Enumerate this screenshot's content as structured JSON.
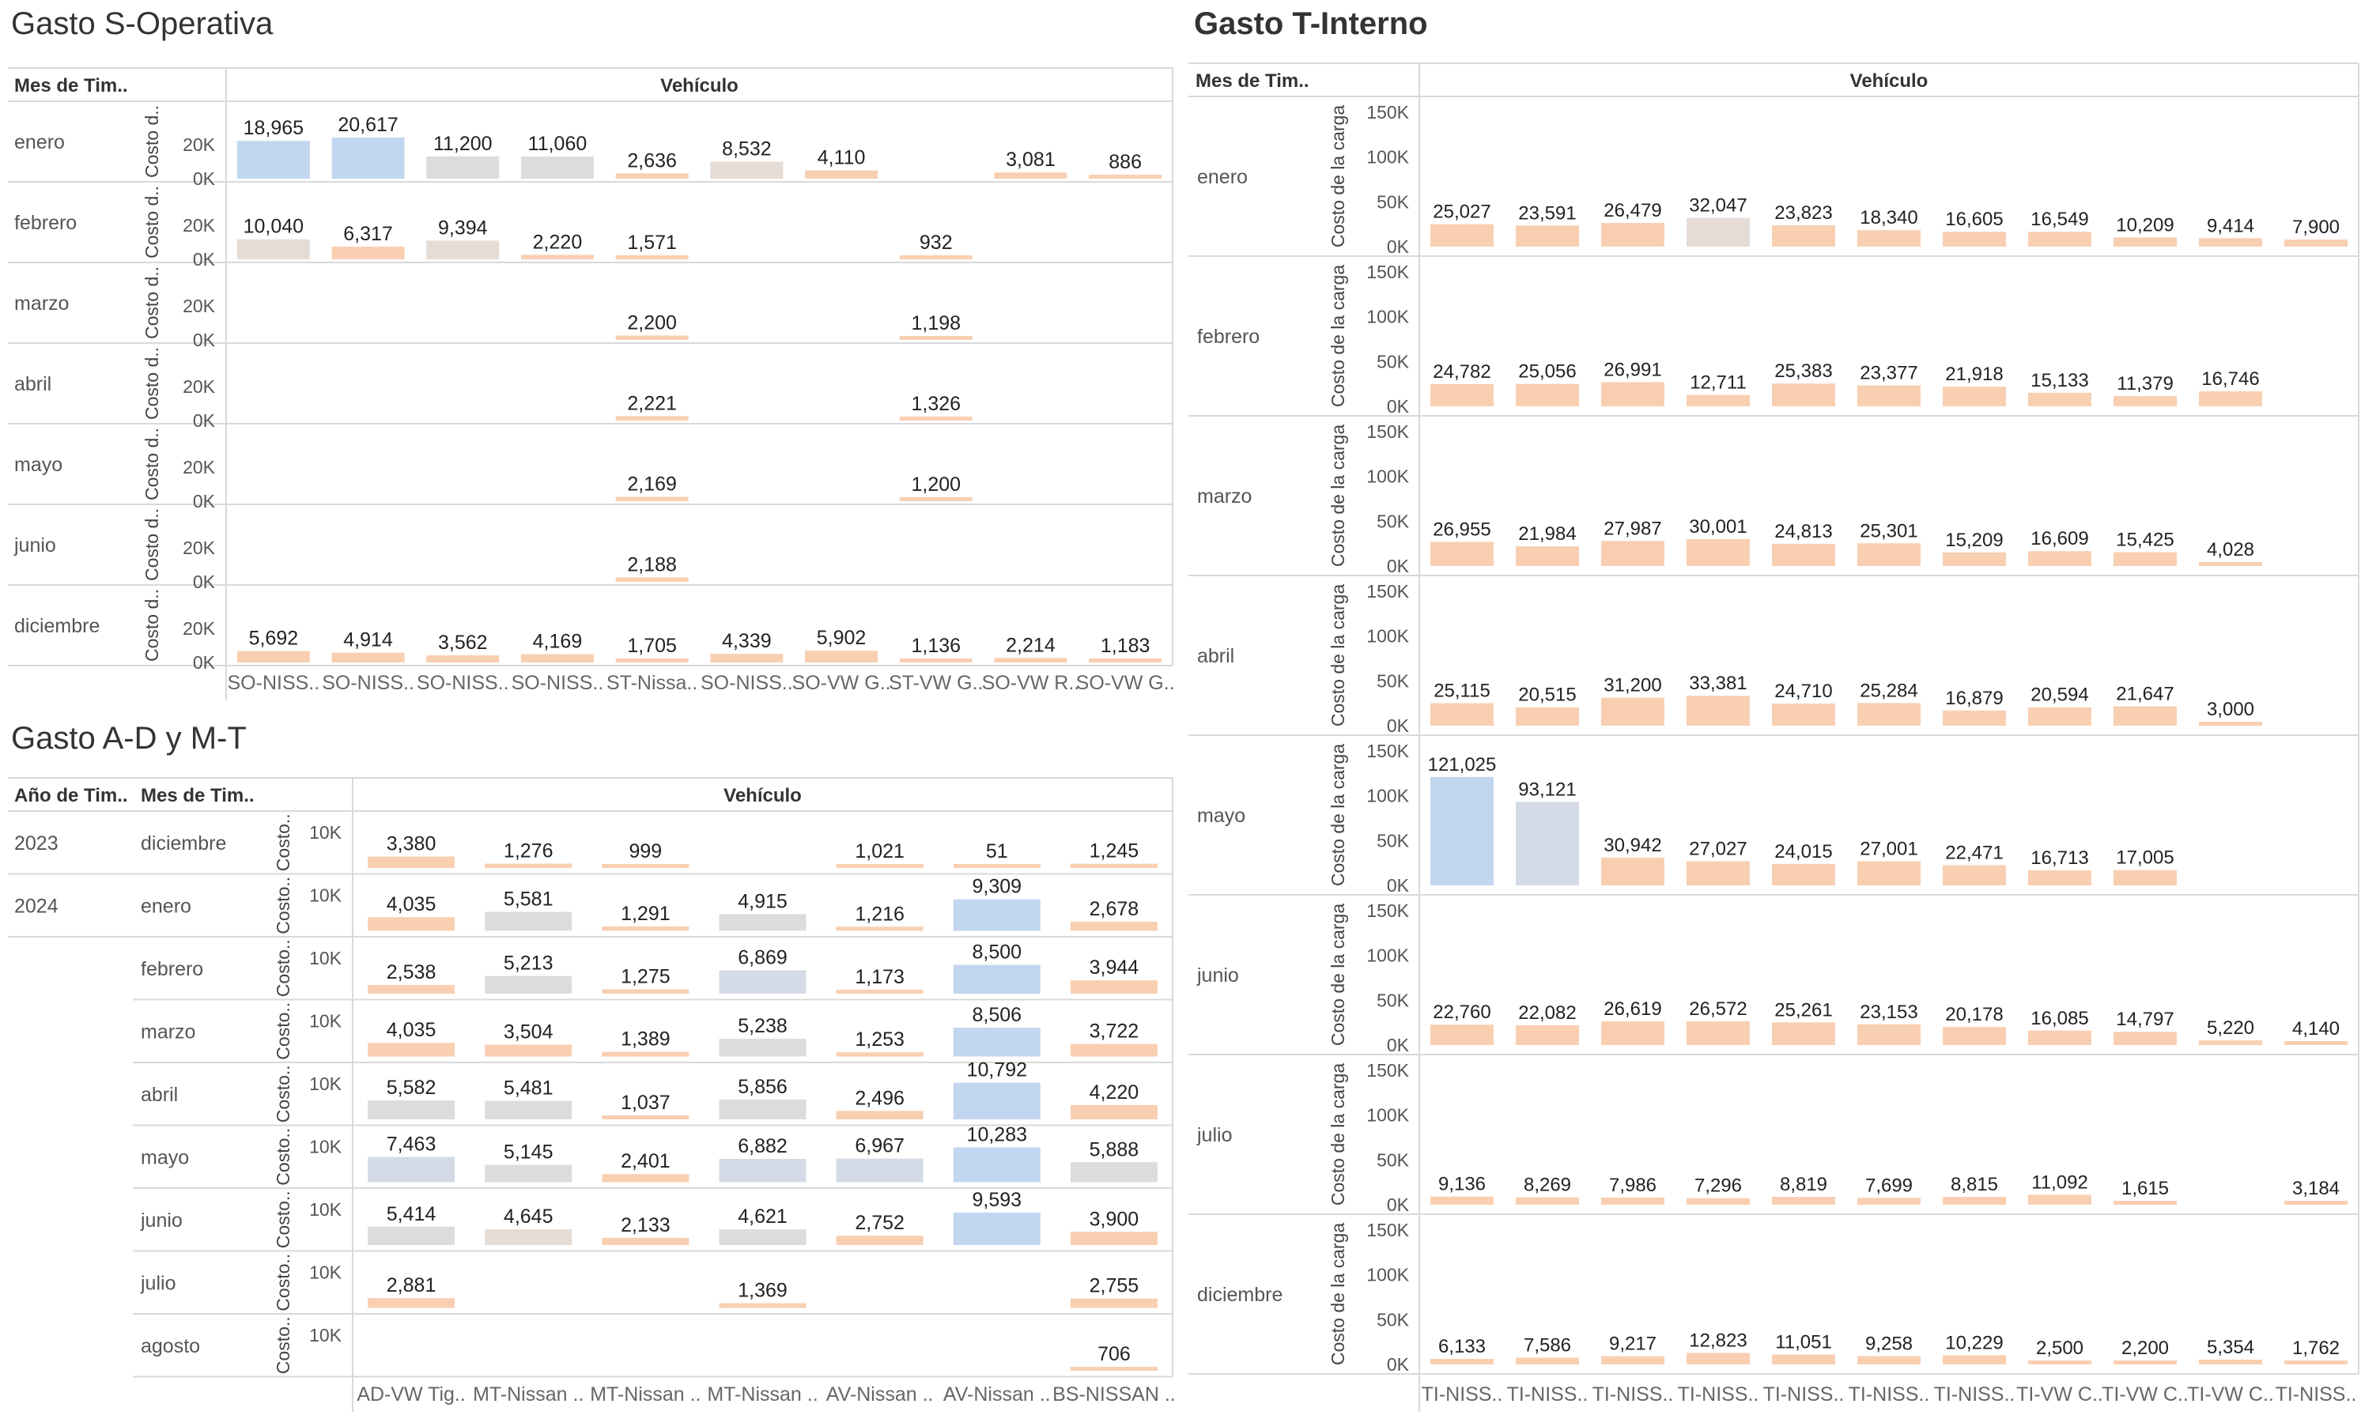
{
  "colors": {
    "blue": "#c3d6f0",
    "blue_gray": "#d4dbe6",
    "gray": "#dcdcdc",
    "warm_gray": "#e6dcd6",
    "peach": "#f9cfb1",
    "peach_light": "#fbd9c0"
  },
  "chart_data": [
    {
      "type": "bar",
      "title": "Gasto S-Operativa",
      "row_header": "Mes de Tim..",
      "column_header": "Vehículo",
      "ylabel": "Costo d..",
      "yticks": [
        "20K",
        "0K"
      ],
      "ylim": [
        0,
        25000
      ],
      "categories": [
        "SO-NISS..",
        "SO-NISS..",
        "SO-NISS..",
        "SO-NISS..",
        "ST-Nissa..",
        "SO-NISS..",
        "SO-VW G..",
        "ST-VW G..",
        "SO-VW R..",
        "SO-VW G.."
      ],
      "rows": [
        {
          "label": "enero",
          "values": [
            18965,
            20617,
            11200,
            11060,
            2636,
            8532,
            4110,
            null,
            3081,
            886
          ],
          "labels": [
            "18,965",
            "20,617",
            "11,200",
            "11,060",
            "2,636",
            "8,532",
            "4,110",
            "",
            "3,081",
            "886"
          ],
          "colors": [
            "blue",
            "blue",
            "gray",
            "gray",
            "peach",
            "warm_gray",
            "peach",
            null,
            "peach",
            "peach"
          ]
        },
        {
          "label": "febrero",
          "values": [
            10040,
            6317,
            9394,
            2220,
            1571,
            null,
            null,
            932,
            null,
            null
          ],
          "labels": [
            "10,040",
            "6,317",
            "9,394",
            "2,220",
            "1,571",
            "",
            "",
            "932",
            "",
            ""
          ],
          "colors": [
            "warm_gray",
            "peach",
            "warm_gray",
            "peach",
            "peach",
            null,
            null,
            "peach",
            null,
            null
          ]
        },
        {
          "label": "marzo",
          "values": [
            null,
            null,
            null,
            null,
            2200,
            null,
            null,
            1198,
            null,
            null
          ],
          "labels": [
            "",
            "",
            "",
            "",
            "2,200",
            "",
            "",
            "1,198",
            "",
            ""
          ],
          "colors": [
            null,
            null,
            null,
            null,
            "peach",
            null,
            null,
            "peach",
            null,
            null
          ]
        },
        {
          "label": "abril",
          "values": [
            null,
            null,
            null,
            null,
            2221,
            null,
            null,
            1326,
            null,
            null
          ],
          "labels": [
            "",
            "",
            "",
            "",
            "2,221",
            "",
            "",
            "1,326",
            "",
            ""
          ],
          "colors": [
            null,
            null,
            null,
            null,
            "peach",
            null,
            null,
            "peach",
            null,
            null
          ]
        },
        {
          "label": "mayo",
          "values": [
            null,
            null,
            null,
            null,
            2169,
            null,
            null,
            1200,
            null,
            null
          ],
          "labels": [
            "",
            "",
            "",
            "",
            "2,169",
            "",
            "",
            "1,200",
            "",
            ""
          ],
          "colors": [
            null,
            null,
            null,
            null,
            "peach",
            null,
            null,
            "peach",
            null,
            null
          ]
        },
        {
          "label": "junio",
          "values": [
            null,
            null,
            null,
            null,
            2188,
            null,
            null,
            null,
            null,
            null
          ],
          "labels": [
            "",
            "",
            "",
            "",
            "2,188",
            "",
            "",
            "",
            "",
            ""
          ],
          "colors": [
            null,
            null,
            null,
            null,
            "peach",
            null,
            null,
            null,
            null,
            null
          ]
        },
        {
          "label": "diciembre",
          "values": [
            5692,
            4914,
            3562,
            4169,
            1705,
            4339,
            5902,
            1136,
            2214,
            1183
          ],
          "labels": [
            "5,692",
            "4,914",
            "3,562",
            "4,169",
            "1,705",
            "4,339",
            "5,902",
            "1,136",
            "2,214",
            "1,183"
          ],
          "colors": [
            "peach",
            "peach",
            "peach",
            "peach",
            "peach",
            "peach",
            "peach",
            "peach",
            "peach",
            "peach"
          ]
        }
      ]
    },
    {
      "type": "bar",
      "title": "Gasto A-D y M-T",
      "year_header": "Año de Tim..",
      "row_header": "Mes de Tim..",
      "column_header": "Vehículo",
      "ylabel": "Costo..",
      "yticks": [
        "10K"
      ],
      "ylim": [
        0,
        14000
      ],
      "categories": [
        "AD-VW Tig..",
        "MT-Nissan ..",
        "MT-Nissan ..",
        "MT-Nissan ..",
        "AV-Nissan ..",
        "AV-Nissan ..",
        "BS-NISSAN .."
      ],
      "rows": [
        {
          "year": "2023",
          "label": "diciembre",
          "values": [
            3380,
            1276,
            999,
            null,
            1021,
            51,
            1245
          ],
          "labels": [
            "3,380",
            "1,276",
            "999",
            "",
            "1,021",
            "51",
            "1,245"
          ],
          "colors": [
            "peach",
            "peach",
            "peach",
            null,
            "peach",
            "peach",
            "peach"
          ]
        },
        {
          "year": "2024",
          "label": "enero",
          "values": [
            4035,
            5581,
            1291,
            4915,
            1216,
            9309,
            2678
          ],
          "labels": [
            "4,035",
            "5,581",
            "1,291",
            "4,915",
            "1,216",
            "9,309",
            "2,678"
          ],
          "colors": [
            "peach",
            "gray",
            "peach",
            "gray",
            "peach",
            "blue",
            "peach"
          ]
        },
        {
          "year": "",
          "label": "febrero",
          "values": [
            2538,
            5213,
            1275,
            6869,
            1173,
            8500,
            3944
          ],
          "labels": [
            "2,538",
            "5,213",
            "1,275",
            "6,869",
            "1,173",
            "8,500",
            "3,944"
          ],
          "colors": [
            "peach",
            "gray",
            "peach",
            "blue_gray",
            "peach",
            "blue",
            "peach"
          ]
        },
        {
          "year": "",
          "label": "marzo",
          "values": [
            4035,
            3504,
            1389,
            5238,
            1253,
            8506,
            3722
          ],
          "labels": [
            "4,035",
            "3,504",
            "1,389",
            "5,238",
            "1,253",
            "8,506",
            "3,722"
          ],
          "colors": [
            "peach",
            "peach",
            "peach",
            "gray",
            "peach",
            "blue",
            "peach"
          ]
        },
        {
          "year": "",
          "label": "abril",
          "values": [
            5582,
            5481,
            1037,
            5856,
            2496,
            10792,
            4220
          ],
          "labels": [
            "5,582",
            "5,481",
            "1,037",
            "5,856",
            "2,496",
            "10,792",
            "4,220"
          ],
          "colors": [
            "gray",
            "gray",
            "peach",
            "gray",
            "peach",
            "blue",
            "peach"
          ]
        },
        {
          "year": "",
          "label": "mayo",
          "values": [
            7463,
            5145,
            2401,
            6882,
            6967,
            10283,
            5888
          ],
          "labels": [
            "7,463",
            "5,145",
            "2,401",
            "6,882",
            "6,967",
            "10,283",
            "5,888"
          ],
          "colors": [
            "blue_gray",
            "gray",
            "peach",
            "blue_gray",
            "blue_gray",
            "blue",
            "gray"
          ]
        },
        {
          "year": "",
          "label": "junio",
          "values": [
            5414,
            4645,
            2133,
            4621,
            2752,
            9593,
            3900
          ],
          "labels": [
            "5,414",
            "4,645",
            "2,133",
            "4,621",
            "2,752",
            "9,593",
            "3,900"
          ],
          "colors": [
            "gray",
            "warm_gray",
            "peach",
            "gray",
            "peach",
            "blue",
            "peach"
          ]
        },
        {
          "year": "",
          "label": "julio",
          "values": [
            2881,
            null,
            null,
            1369,
            null,
            null,
            2755
          ],
          "labels": [
            "2,881",
            "",
            "",
            "1,369",
            "",
            "",
            "2,755"
          ],
          "colors": [
            "peach",
            null,
            null,
            "peach",
            null,
            null,
            "peach"
          ]
        },
        {
          "year": "",
          "label": "agosto",
          "values": [
            null,
            null,
            null,
            null,
            null,
            null,
            706
          ],
          "labels": [
            "",
            "",
            "",
            "",
            "",
            "",
            "706"
          ],
          "colors": [
            null,
            null,
            null,
            null,
            null,
            null,
            "peach"
          ]
        }
      ]
    },
    {
      "type": "bar",
      "title": "Gasto T-Interno",
      "row_header": "Mes de Tim..",
      "column_header": "Vehículo",
      "ylabel": "Costo de la carga",
      "yticks": [
        "150K",
        "100K",
        "50K",
        "0K"
      ],
      "ylim": [
        0,
        150000
      ],
      "categories": [
        "TI-NISS..",
        "TI-NISS..",
        "TI-NISS..",
        "TI-NISS..",
        "TI-NISS..",
        "TI-NISS..",
        "TI-NISS..",
        "TI-VW C..",
        "TI-VW C..",
        "TI-VW C..",
        "TI-NISS.."
      ],
      "rows": [
        {
          "label": "enero",
          "values": [
            25027,
            23591,
            26479,
            32047,
            23823,
            18340,
            16605,
            16549,
            10209,
            9414,
            7900
          ],
          "labels": [
            "25,027",
            "23,591",
            "26,479",
            "32,047",
            "23,823",
            "18,340",
            "16,605",
            "16,549",
            "10,209",
            "9,414",
            "7,900"
          ],
          "colors": [
            "peach",
            "peach",
            "peach",
            "warm_gray",
            "peach",
            "peach",
            "peach",
            "peach",
            "peach",
            "peach",
            "peach"
          ]
        },
        {
          "label": "febrero",
          "values": [
            24782,
            25056,
            26991,
            12711,
            25383,
            23377,
            21918,
            15133,
            11379,
            16746,
            null
          ],
          "labels": [
            "24,782",
            "25,056",
            "26,991",
            "12,711",
            "25,383",
            "23,377",
            "21,918",
            "15,133",
            "11,379",
            "16,746",
            ""
          ],
          "colors": [
            "peach",
            "peach",
            "peach",
            "peach",
            "peach",
            "peach",
            "peach",
            "peach",
            "peach",
            "peach",
            null
          ]
        },
        {
          "label": "marzo",
          "values": [
            26955,
            21984,
            27987,
            30001,
            24813,
            25301,
            15209,
            16609,
            15425,
            4028,
            null
          ],
          "labels": [
            "26,955",
            "21,984",
            "27,987",
            "30,001",
            "24,813",
            "25,301",
            "15,209",
            "16,609",
            "15,425",
            "4,028",
            ""
          ],
          "colors": [
            "peach",
            "peach",
            "peach",
            "peach",
            "peach",
            "peach",
            "peach",
            "peach",
            "peach",
            "peach",
            null
          ]
        },
        {
          "label": "abril",
          "values": [
            25115,
            20515,
            31200,
            33381,
            24710,
            25284,
            16879,
            20594,
            21647,
            3000,
            null
          ],
          "labels": [
            "25,115",
            "20,515",
            "31,200",
            "33,381",
            "24,710",
            "25,284",
            "16,879",
            "20,594",
            "21,647",
            "3,000",
            ""
          ],
          "colors": [
            "peach",
            "peach",
            "peach",
            "peach",
            "peach",
            "peach",
            "peach",
            "peach",
            "peach",
            "peach",
            null
          ]
        },
        {
          "label": "mayo",
          "values": [
            121025,
            93121,
            30942,
            27027,
            24015,
            27001,
            22471,
            16713,
            17005,
            null,
            null
          ],
          "labels": [
            "121,025",
            "93,121",
            "30,942",
            "27,027",
            "24,015",
            "27,001",
            "22,471",
            "16,713",
            "17,005",
            "",
            ""
          ],
          "colors": [
            "blue",
            "blue_gray",
            "peach",
            "peach",
            "peach",
            "peach",
            "peach",
            "peach",
            "peach",
            null,
            null
          ]
        },
        {
          "label": "junio",
          "values": [
            22760,
            22082,
            26619,
            26572,
            25261,
            23153,
            20178,
            16085,
            14797,
            5220,
            4140
          ],
          "labels": [
            "22,760",
            "22,082",
            "26,619",
            "26,572",
            "25,261",
            "23,153",
            "20,178",
            "16,085",
            "14,797",
            "5,220",
            "4,140"
          ],
          "colors": [
            "peach",
            "peach",
            "peach",
            "peach",
            "peach",
            "peach",
            "peach",
            "peach",
            "peach",
            "peach",
            "peach"
          ]
        },
        {
          "label": "julio",
          "values": [
            9136,
            8269,
            7986,
            7296,
            8819,
            7699,
            8815,
            11092,
            1615,
            null,
            3184
          ],
          "labels": [
            "9,136",
            "8,269",
            "7,986",
            "7,296",
            "8,819",
            "7,699",
            "8,815",
            "11,092",
            "1,615",
            "",
            "3,184"
          ],
          "colors": [
            "peach",
            "peach",
            "peach",
            "peach",
            "peach",
            "peach",
            "peach",
            "peach",
            "peach",
            null,
            "peach"
          ]
        },
        {
          "label": "diciembre",
          "values": [
            6133,
            7586,
            9217,
            12823,
            11051,
            9258,
            10229,
            2500,
            2200,
            5354,
            1762
          ],
          "labels": [
            "6,133",
            "7,586",
            "9,217",
            "12,823",
            "11,051",
            "9,258",
            "10,229",
            "2,500",
            "2,200",
            "5,354",
            "1,762"
          ],
          "colors": [
            "peach",
            "peach",
            "peach",
            "peach",
            "peach",
            "peach",
            "peach",
            "peach",
            "peach",
            "peach",
            "peach"
          ]
        }
      ]
    }
  ]
}
